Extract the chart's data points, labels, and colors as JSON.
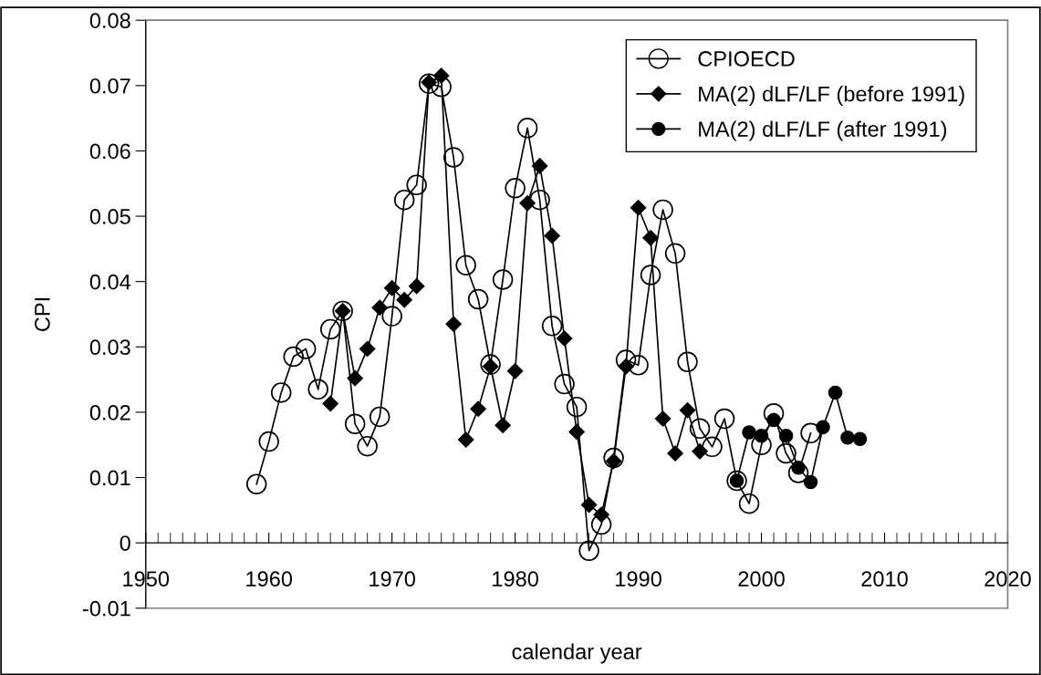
{
  "chart_data": {
    "type": "line",
    "xlabel": "calendar year",
    "ylabel": "CPI",
    "xlim": [
      1950,
      2020
    ],
    "xticks": [
      1950,
      1960,
      1970,
      1980,
      1990,
      2000,
      2010,
      2020
    ],
    "ylim": [
      -0.01,
      0.08
    ],
    "yticks": [
      -0.01,
      0,
      0.01,
      0.02,
      0.03,
      0.04,
      0.05,
      0.06,
      0.07,
      0.08
    ],
    "legend": "top right",
    "line_style": "solid",
    "series": [
      {
        "name": "CPIOECD",
        "color": "#000000",
        "marker": "circle",
        "x": [
          1959,
          1960,
          1961,
          1962,
          1963,
          1964,
          1965,
          1966,
          1967,
          1968,
          1969,
          1970,
          1971,
          1972,
          1973,
          1974,
          1975,
          1976,
          1977,
          1978,
          1979,
          1980,
          1981,
          1982,
          1983,
          1984,
          1985,
          1986,
          1987,
          1988,
          1989,
          1990,
          1991,
          1992,
          1993,
          1994,
          1995,
          1996,
          1997,
          1998,
          1999,
          2000,
          2001,
          2002,
          2003,
          2004
        ],
        "values": [
          0.009,
          0.0155,
          0.023,
          0.0285,
          0.0297,
          0.0235,
          0.0327,
          0.0355,
          0.0182,
          0.0148,
          0.0193,
          0.0347,
          0.0525,
          0.0548,
          0.0703,
          0.0698,
          0.059,
          0.0425,
          0.0373,
          0.0273,
          0.0403,
          0.0543,
          0.0635,
          0.0525,
          0.0332,
          0.0243,
          0.0208,
          -0.0012,
          0.0028,
          0.013,
          0.028,
          0.0272,
          0.041,
          0.051,
          0.0443,
          0.0277,
          0.0175,
          0.0147,
          0.019,
          0.0095,
          0.006,
          0.015,
          0.0198,
          0.0137,
          0.0107,
          0.0168
        ]
      },
      {
        "name": "MA(2) dLF/LF (before 1991)",
        "color": "#000000",
        "marker": "diamond",
        "x": [
          1965,
          1966,
          1967,
          1968,
          1969,
          1970,
          1971,
          1972,
          1973,
          1974,
          1975,
          1976,
          1977,
          1978,
          1979,
          1980,
          1981,
          1982,
          1983,
          1984,
          1985,
          1986,
          1987,
          1988,
          1989,
          1990,
          1991,
          1992,
          1993,
          1994,
          1995
        ],
        "values": [
          0.0213,
          0.0355,
          0.0252,
          0.0297,
          0.036,
          0.039,
          0.0372,
          0.0393,
          0.0705,
          0.0715,
          0.0335,
          0.0158,
          0.0205,
          0.027,
          0.018,
          0.0263,
          0.052,
          0.0577,
          0.047,
          0.0313,
          0.017,
          0.0058,
          0.0043,
          0.0125,
          0.027,
          0.0513,
          0.0467,
          0.019,
          0.0137,
          0.0203,
          0.014
        ]
      },
      {
        "name": "MA(2) dLF/LF (after 1991)",
        "color": "#000000",
        "marker": "circle",
        "x": [
          1998,
          1999,
          2000,
          2001,
          2002,
          2003,
          2004,
          2005,
          2006,
          2007,
          2008
        ],
        "values": [
          0.0095,
          0.0169,
          0.0164,
          0.0188,
          0.0164,
          0.0115,
          0.0093,
          0.0177,
          0.023,
          0.0161,
          0.0159
        ]
      }
    ]
  }
}
